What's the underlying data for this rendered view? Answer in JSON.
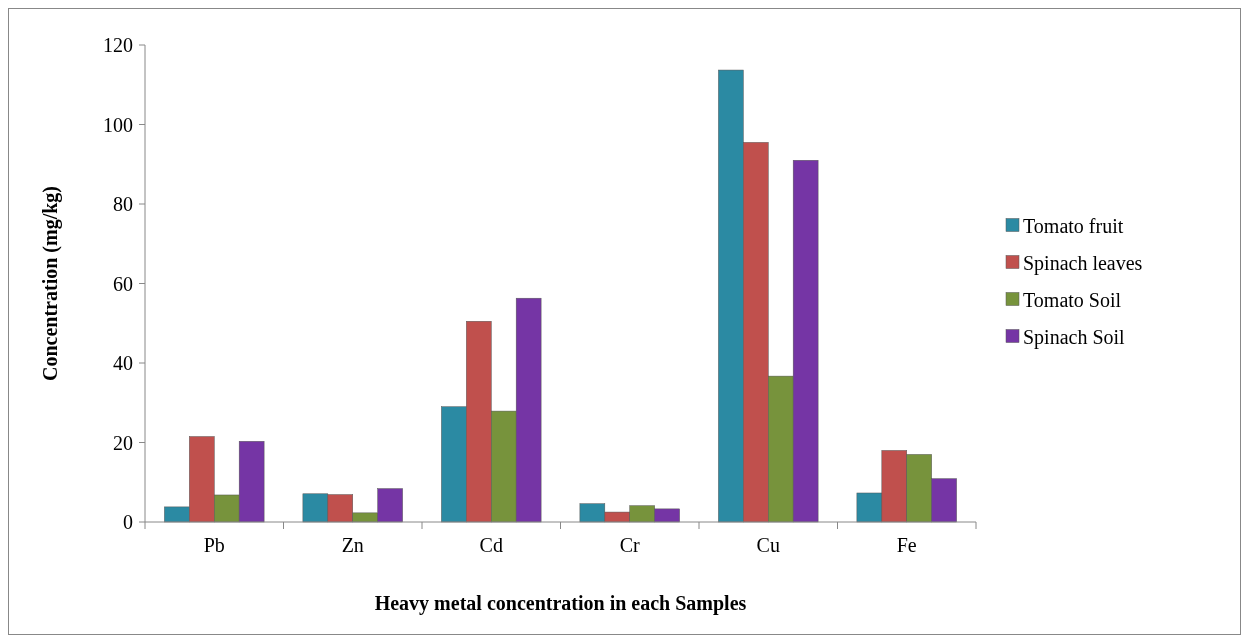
{
  "chart_data": {
    "type": "bar",
    "xlabel": "Heavy metal concentration in each Samples",
    "ylabel": "Concentration (mg/kg)",
    "categories": [
      "Pb",
      "Zn",
      "Cd",
      "Cr",
      "Cu",
      "Fe"
    ],
    "series": [
      {
        "name": "Tomato fruit",
        "color": "#2b8aa3",
        "values": [
          3.8,
          7.1,
          29,
          4.6,
          113.7,
          7.3
        ]
      },
      {
        "name": "Spinach leaves",
        "color": "#c0504d",
        "values": [
          21.5,
          6.9,
          50.5,
          2.5,
          95.5,
          18
        ]
      },
      {
        "name": "Tomato Soil",
        "color": "#77933c",
        "values": [
          6.8,
          2.3,
          27.9,
          4.1,
          36.7,
          17
        ]
      },
      {
        "name": "Spinach Soil",
        "color": "#7535a5",
        "values": [
          20.3,
          8.4,
          56.3,
          3.3,
          91,
          10.9
        ]
      }
    ],
    "ylim": [
      0,
      120
    ],
    "yticks": [
      0,
      20,
      40,
      60,
      80,
      100,
      120
    ],
    "grid": false,
    "legend": "right"
  }
}
